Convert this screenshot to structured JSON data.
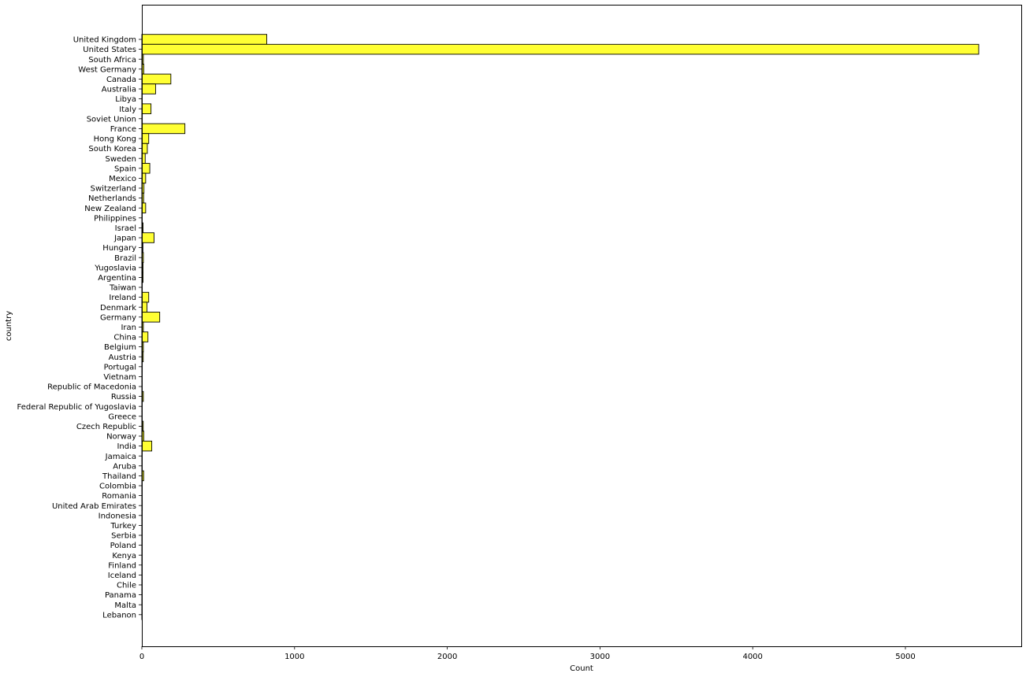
{
  "chart_data": {
    "type": "bar",
    "orientation": "horizontal",
    "xlabel": "Count",
    "ylabel": "country",
    "xlim": [
      0,
      5480
    ],
    "xticks": [
      0,
      1000,
      2000,
      3000,
      4000,
      5000
    ],
    "grid": false,
    "bar_color": "#ffff33",
    "edge_color": "#000000",
    "categories": [
      "United Kingdom",
      "United States",
      "South Africa",
      "West Germany",
      "Canada",
      "Australia",
      "Libya",
      "Italy",
      "Soviet Union",
      "France",
      "Hong Kong",
      "South Korea",
      "Sweden",
      "Spain",
      "Mexico",
      "Switzerland",
      "Netherlands",
      "New Zealand",
      "Philippines",
      "Israel",
      "Japan",
      "Hungary",
      "Brazil",
      "Yugoslavia",
      "Argentina",
      "Taiwan",
      "Ireland",
      "Denmark",
      "Germany",
      "Iran",
      "China",
      "Belgium",
      "Austria",
      "Portugal",
      "Vietnam",
      "Republic of Macedonia",
      "Russia",
      "Federal Republic of Yugoslavia",
      "Greece",
      "Czech Republic",
      "Norway",
      "India",
      "Jamaica",
      "Aruba",
      "Thailand",
      "Colombia",
      "Romania",
      "United Arab Emirates",
      "Indonesia",
      "Turkey",
      "Serbia",
      "Poland",
      "Kenya",
      "Finland",
      "Iceland",
      "Chile",
      "Panama",
      "Malta",
      "Lebanon"
    ],
    "values": [
      818,
      5480,
      10,
      13,
      190,
      90,
      2,
      60,
      3,
      282,
      45,
      36,
      22,
      52,
      25,
      14,
      12,
      25,
      2,
      8,
      80,
      7,
      10,
      8,
      8,
      3,
      45,
      34,
      117,
      10,
      40,
      10,
      9,
      3,
      2,
      2,
      10,
      1,
      2,
      9,
      13,
      65,
      2,
      1,
      12,
      2,
      2,
      3,
      2,
      2,
      2,
      2,
      1,
      1,
      1,
      1,
      1,
      1,
      1
    ]
  }
}
